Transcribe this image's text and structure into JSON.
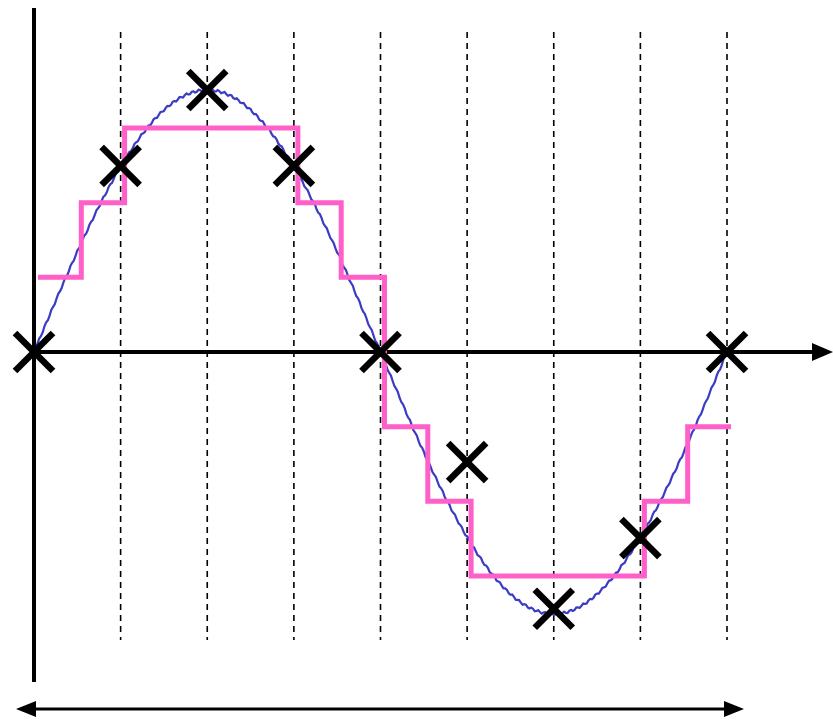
{
  "diagram": {
    "kind": "sampling-and-quantization",
    "colors": {
      "axes": "#000000",
      "analog_signal": "#3b3bc4",
      "quantized_signal": "#ff5fc8",
      "sample_markers": "#000000",
      "sample_gridlines": "#000000",
      "background": "#ffffff"
    },
    "signal": {
      "shape": "sine",
      "cycles": 1
    },
    "samples": {
      "count": 9,
      "normalized_values": [
        0.0,
        0.71,
        1.0,
        0.71,
        0.0,
        -0.42,
        -0.98,
        -0.71,
        0.0
      ]
    },
    "quantized_staircase": {
      "levels_per_step": 0.285,
      "description_visible": false
    },
    "period_arrow": {
      "double_headed": true
    }
  }
}
